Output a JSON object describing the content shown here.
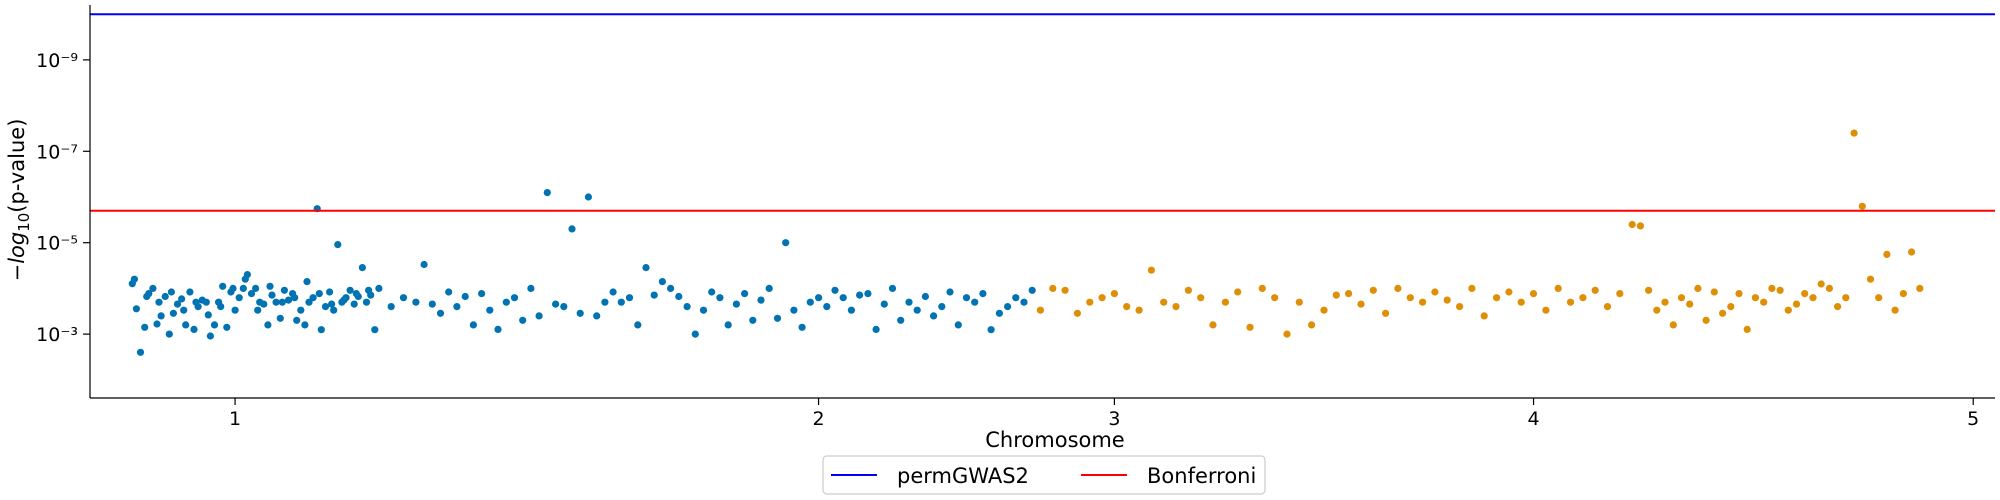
{
  "chart_data": {
    "type": "scatter",
    "subtype": "manhattan",
    "title": "",
    "xlabel": "Chromosome",
    "ylabel": "−log₁₀(p-value)",
    "y_scale": "log-inverted",
    "ylim": [
      0.025,
      6.3e-11
    ],
    "grid": false,
    "legend_position": "bottom-center",
    "x_ticks": [
      {
        "label": "1",
        "x": 22
      },
      {
        "label": "2",
        "x": 164
      },
      {
        "label": "3",
        "x": 236
      },
      {
        "label": "4",
        "x": 338
      },
      {
        "label": "5",
        "x": 445
      }
    ],
    "y_ticks": [
      {
        "label": "10⁻³",
        "p": 0.001
      },
      {
        "label": "10⁻⁵",
        "p": 1e-05
      },
      {
        "label": "10⁻⁷",
        "p": 1e-07
      },
      {
        "label": "10⁻⁹",
        "p": 1e-09
      }
    ],
    "thresholds": [
      {
        "name": "permGWAS2",
        "p": 1e-10,
        "color": "#0000ff"
      },
      {
        "name": "Bonferroni",
        "p": 2e-06,
        "color": "#ff0000"
      }
    ],
    "series": [
      {
        "chromosome": "1",
        "color": "#0173b2",
        "points": [
          [
            -3,
            7.9e-05
          ],
          [
            -2,
            0.00028
          ],
          [
            -1,
            0.0025
          ],
          [
            0,
            0.00071
          ],
          [
            1,
            0.00013
          ],
          [
            2,
            0.0001
          ],
          [
            3,
            0.0006
          ],
          [
            4,
            0.0004
          ],
          [
            5,
            0.00015
          ],
          [
            6,
            0.001
          ],
          [
            7,
            0.00035
          ],
          [
            8,
            0.00022
          ],
          [
            9,
            0.00017
          ],
          [
            10,
            0.00063
          ],
          [
            11,
            0.00012
          ],
          [
            12,
            0.00079
          ],
          [
            13,
            0.00025
          ],
          [
            14,
            0.00018
          ],
          [
            15,
            0.0002
          ],
          [
            16,
            0.0011
          ],
          [
            17,
            0.00063
          ],
          [
            18,
            0.0002
          ],
          [
            19,
            9e-05
          ],
          [
            20,
            0.00071
          ],
          [
            21,
            0.00012
          ],
          [
            22,
            0.0003
          ],
          [
            23,
            0.00016
          ],
          [
            24,
            0.0001
          ],
          [
            25,
            5e-05
          ],
          [
            26,
            0.00013
          ],
          [
            27,
            0.0001
          ],
          [
            28,
            0.0002
          ],
          [
            29,
            0.00022
          ],
          [
            30,
            0.00063
          ],
          [
            31,
            0.00014
          ],
          [
            32,
            0.0002
          ],
          [
            33,
            0.00045
          ],
          [
            34,
            0.00011
          ],
          [
            35,
            0.00018
          ],
          [
            36,
            0.00013
          ],
          [
            37,
            0.0005
          ],
          [
            38,
            0.0003
          ],
          [
            39,
            0.00063
          ],
          [
            40,
            0.0002
          ],
          [
            41,
            0.00016
          ],
          [
            42,
            1.8e-06
          ],
          [
            43,
            0.0008
          ],
          [
            44,
            0.00025
          ],
          [
            45,
            0.00012
          ],
          [
            46,
            0.0003
          ],
          [
            47,
            1.1e-05
          ],
          [
            48,
            0.0002
          ],
          [
            49,
            0.00016
          ],
          [
            50,
            0.00011
          ],
          [
            51,
            0.00022
          ],
          [
            52,
            0.00015
          ],
          [
            53,
            3.5e-05
          ],
          [
            54,
            0.0002
          ],
          [
            55,
            0.00014
          ],
          [
            56,
            0.0008
          ],
          [
            -2.5,
            6.3e-05
          ],
          [
            0.5,
            0.00015
          ],
          [
            3.5,
            0.0002
          ],
          [
            6.5,
            0.00012
          ],
          [
            9.5,
            0.0003
          ],
          [
            12.5,
            0.0002
          ],
          [
            15.5,
            0.00038
          ],
          [
            18.5,
            0.00025
          ],
          [
            21.5,
            0.0001
          ],
          [
            24.5,
            6.3e-05
          ],
          [
            27.5,
            0.0003
          ],
          [
            30.5,
            9e-05
          ],
          [
            33.5,
            0.0002
          ],
          [
            36.5,
            0.00016
          ],
          [
            39.5,
            7.1e-05
          ],
          [
            42.5,
            0.00013
          ],
          [
            45.5,
            0.00022
          ],
          [
            48.5,
            0.00018
          ],
          [
            51.5,
            0.00013
          ],
          [
            54.5,
            0.00011
          ],
          [
            57,
            0.0001
          ],
          [
            60,
            0.00025
          ],
          [
            63,
            0.00016
          ],
          [
            66,
            0.0002
          ],
          [
            68,
            3e-05
          ],
          [
            70,
            0.00022
          ],
          [
            72,
            0.00035
          ],
          [
            74,
            0.00012
          ],
          [
            76,
            0.00025
          ],
          [
            78,
            0.00015
          ],
          [
            80,
            0.00063
          ],
          [
            82,
            0.00013
          ],
          [
            84,
            0.0003
          ],
          [
            86,
            0.00079
          ],
          [
            88,
            0.0002
          ],
          [
            90,
            0.00016
          ],
          [
            92,
            0.0005
          ],
          [
            94,
            0.0001
          ],
          [
            96,
            0.0004
          ],
          [
            98,
            8e-07
          ],
          [
            100,
            0.00022
          ],
          [
            102,
            0.00025
          ],
          [
            104,
            5e-06
          ],
          [
            106,
            0.00035
          ],
          [
            108,
            1e-06
          ],
          [
            110,
            0.0004
          ],
          [
            112,
            0.0002
          ],
          [
            114,
            0.00012
          ],
          [
            116,
            0.0002
          ],
          [
            118,
            0.00016
          ],
          [
            120,
            0.00063
          ],
          [
            122,
            3.5e-05
          ],
          [
            124,
            0.00014
          ],
          [
            126,
            7.1e-05
          ],
          [
            128,
            0.0001
          ],
          [
            130,
            0.00015
          ],
          [
            132,
            0.00025
          ],
          [
            134,
            0.001
          ],
          [
            136,
            0.0003
          ],
          [
            138,
            0.00012
          ],
          [
            140,
            0.00016
          ],
          [
            142,
            0.00063
          ],
          [
            144,
            0.00022
          ],
          [
            146,
            0.00013
          ],
          [
            148,
            0.0005
          ],
          [
            150,
            0.00018
          ],
          [
            152,
            0.0001
          ],
          [
            154,
            0.00045
          ],
          [
            156,
            1e-05
          ],
          [
            158,
            0.0003
          ],
          [
            160,
            0.00071
          ],
          [
            162,
            0.0002
          ],
          [
            164,
            0.00016
          ],
          [
            166,
            0.00025
          ],
          [
            168,
            0.00011
          ],
          [
            170,
            0.00016
          ],
          [
            172,
            0.0003
          ],
          [
            174,
            0.00014
          ],
          [
            176,
            0.00013
          ],
          [
            178,
            0.00079
          ],
          [
            180,
            0.00022
          ],
          [
            182,
            0.0001
          ],
          [
            184,
            0.0005
          ],
          [
            186,
            0.0002
          ],
          [
            188,
            0.0003
          ],
          [
            190,
            0.00015
          ],
          [
            192,
            0.0004
          ],
          [
            194,
            0.00025
          ],
          [
            196,
            0.00012
          ],
          [
            198,
            0.00063
          ],
          [
            200,
            0.00016
          ],
          [
            202,
            0.0002
          ],
          [
            204,
            0.00013
          ],
          [
            206,
            0.0008
          ],
          [
            208,
            0.00035
          ],
          [
            210,
            0.00025
          ],
          [
            212,
            0.00016
          ],
          [
            214,
            0.0002
          ],
          [
            216,
            0.00011
          ]
        ]
      },
      {
        "chromosome": "2",
        "color": "#de8f05",
        "points": [
          [
            218,
            0.0003
          ],
          [
            221,
            0.0001
          ],
          [
            224,
            0.00011
          ],
          [
            227,
            0.00035
          ],
          [
            230,
            0.0002
          ],
          [
            233,
            0.00016
          ],
          [
            236,
            0.00013
          ],
          [
            239,
            0.00025
          ],
          [
            242,
            0.0003
          ],
          [
            245,
            4e-05
          ],
          [
            248,
            0.0002
          ],
          [
            251,
            0.00025
          ],
          [
            254,
            0.00011
          ],
          [
            257,
            0.00016
          ],
          [
            260,
            0.00063
          ],
          [
            263,
            0.0002
          ],
          [
            266,
            0.00012
          ],
          [
            269,
            0.00071
          ],
          [
            272,
            0.0001
          ],
          [
            275,
            0.00016
          ],
          [
            278,
            0.001
          ],
          [
            281,
            0.0002
          ],
          [
            284,
            0.00063
          ],
          [
            287,
            0.0003
          ],
          [
            290,
            0.00014
          ],
          [
            293,
            0.00013
          ],
          [
            296,
            0.00022
          ],
          [
            299,
            0.00011
          ],
          [
            302,
            0.00035
          ],
          [
            305,
            0.0001
          ],
          [
            308,
            0.00016
          ],
          [
            311,
            0.0002
          ],
          [
            314,
            0.00012
          ],
          [
            317,
            0.00018
          ],
          [
            320,
            0.00025
          ],
          [
            323,
            0.0001
          ],
          [
            326,
            0.0004
          ],
          [
            329,
            0.00016
          ],
          [
            332,
            0.00012
          ],
          [
            335,
            0.0002
          ],
          [
            338,
            0.00013
          ],
          [
            341,
            0.0003
          ],
          [
            344,
            0.0001
          ],
          [
            347,
            0.0002
          ],
          [
            350,
            0.00016
          ],
          [
            353,
            0.00011
          ],
          [
            356,
            0.00025
          ],
          [
            359,
            0.00013
          ],
          [
            362,
            4e-06
          ],
          [
            364,
            4.3e-06
          ],
          [
            366,
            0.00011
          ],
          [
            368,
            0.0003
          ],
          [
            370,
            0.0002
          ],
          [
            372,
            0.00063
          ],
          [
            374,
            0.00016
          ],
          [
            376,
            0.00022
          ],
          [
            378,
            0.0001
          ],
          [
            380,
            0.0005
          ],
          [
            382,
            0.00012
          ],
          [
            384,
            0.00035
          ],
          [
            386,
            0.00025
          ],
          [
            388,
            0.00013
          ],
          [
            390,
            0.00079
          ],
          [
            392,
            0.00016
          ],
          [
            394,
            0.0002
          ],
          [
            396,
            0.0001
          ],
          [
            398,
            0.00011
          ],
          [
            400,
            0.0003
          ],
          [
            402,
            0.00022
          ],
          [
            404,
            0.00013
          ],
          [
            406,
            0.00016
          ],
          [
            408,
            8e-05
          ],
          [
            410,
            0.0001
          ],
          [
            412,
            0.00025
          ],
          [
            414,
            0.00016
          ],
          [
            416,
            4e-08
          ],
          [
            418,
            1.6e-06
          ],
          [
            420,
            6.3e-05
          ],
          [
            422,
            0.00016
          ],
          [
            424,
            1.8e-05
          ],
          [
            426,
            0.0003
          ],
          [
            428,
            0.00013
          ],
          [
            430,
            1.6e-05
          ],
          [
            432,
            0.0001
          ]
        ]
      }
    ]
  },
  "legend": {
    "items": [
      {
        "label": "permGWAS2",
        "color": "#0000ff"
      },
      {
        "label": "Bonferroni",
        "color": "#ff0000"
      }
    ]
  },
  "axes": {
    "xlabel": "Chromosome",
    "ylabel_prefix": "−log",
    "ylabel_sub": "10",
    "ylabel_suffix": "(p-value)"
  }
}
